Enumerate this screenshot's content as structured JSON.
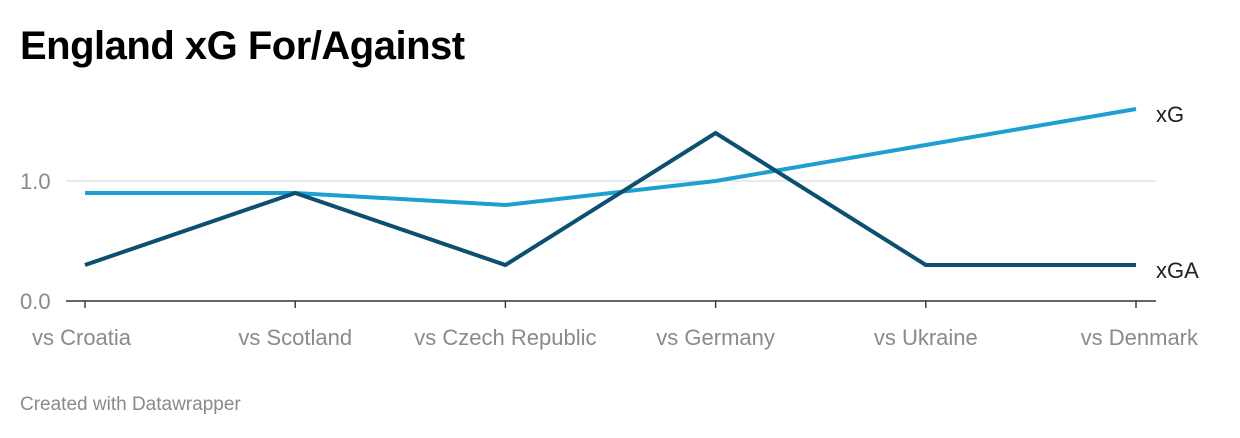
{
  "chart_data": {
    "type": "line",
    "title": "England xG For/Against",
    "categories": [
      "vs Croatia",
      "vs Scotland",
      "vs Czech Republic",
      "vs Germany",
      "vs Ukraine",
      "vs Denmark"
    ],
    "series": [
      {
        "name": "xG",
        "color": "#1d9fd0",
        "values": [
          0.9,
          0.9,
          0.8,
          1.0,
          1.3,
          1.6
        ]
      },
      {
        "name": "xGA",
        "color": "#0b4f72",
        "values": [
          0.3,
          0.9,
          0.3,
          1.4,
          0.3,
          0.3
        ]
      }
    ],
    "y_ticks": [
      0.0,
      1.0
    ],
    "y_tick_labels": [
      "0.0",
      "1.0"
    ],
    "ylim": [
      0,
      1.65
    ],
    "grid": true,
    "legend": "direct labels at line ends"
  },
  "footer": "Created with Datawrapper"
}
